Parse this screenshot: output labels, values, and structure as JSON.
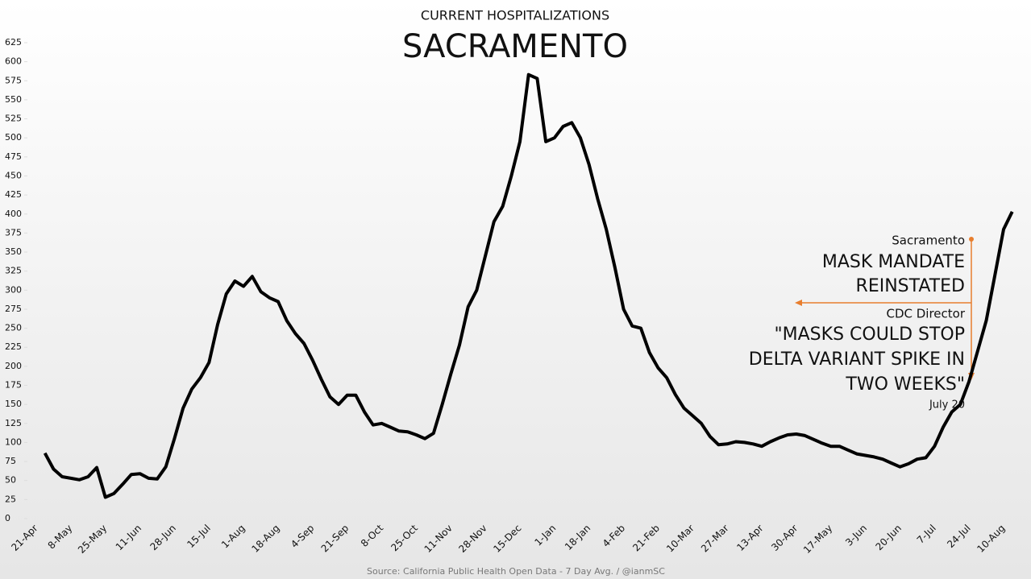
{
  "chart_data": {
    "type": "line",
    "title": "CURRENT HOSPITALIZATIONS",
    "subtitle": "SACRAMENTO",
    "source": "Source: California Public Health Open Data - 7 Day Avg. / @ianmSC",
    "categories": [
      "21-Apr",
      null,
      null,
      null,
      "8-May",
      null,
      null,
      null,
      "25-May",
      null,
      null,
      null,
      "11-Jun",
      null,
      null,
      null,
      "28-Jun",
      null,
      null,
      null,
      "15-Jul",
      null,
      null,
      null,
      "1-Aug",
      null,
      null,
      null,
      "18-Aug",
      null,
      null,
      null,
      "4-Sep",
      null,
      null,
      null,
      "21-Sep",
      null,
      null,
      null,
      "8-Oct",
      null,
      null,
      null,
      "25-Oct",
      null,
      null,
      null,
      "11-Nov",
      null,
      null,
      null,
      "28-Nov",
      null,
      null,
      null,
      "15-Dec",
      null,
      null,
      null,
      "1-Jan",
      null,
      null,
      null,
      "18-Jan",
      null,
      null,
      null,
      "4-Feb",
      null,
      null,
      null,
      "21-Feb",
      null,
      null,
      null,
      "10-Mar",
      null,
      null,
      null,
      "27-Mar",
      null,
      null,
      null,
      "13-Apr",
      null,
      null,
      null,
      "30-Apr",
      null,
      null,
      null,
      "17-May",
      null,
      null,
      null,
      "3-Jun",
      null,
      null,
      null,
      "20-Jun",
      null,
      null,
      null,
      "7-Jul",
      null,
      null,
      null,
      "24-Jul",
      null,
      null,
      null,
      "10-Aug",
      null
    ],
    "series": [
      {
        "name": "Sacramento",
        "color": "#000000",
        "values": [
          null,
          86,
          65,
          55,
          53,
          51,
          55,
          67,
          28,
          33,
          45,
          58,
          59,
          53,
          52,
          68,
          105,
          145,
          170,
          185,
          205,
          255,
          295,
          312,
          305,
          318,
          298,
          290,
          285,
          260,
          243,
          230,
          208,
          183,
          160,
          150,
          162,
          162,
          140,
          123,
          125,
          120,
          115,
          114,
          110,
          105,
          112,
          150,
          190,
          228,
          278,
          300,
          345,
          390,
          410,
          450,
          495,
          583,
          578,
          495,
          500,
          515,
          520,
          500,
          465,
          420,
          380,
          330,
          275,
          253,
          250,
          218,
          198,
          185,
          163,
          145,
          135,
          125,
          108,
          97,
          98,
          101,
          100,
          98,
          95,
          101,
          106,
          110,
          111,
          109,
          104,
          99,
          95,
          95,
          90,
          85,
          83,
          81,
          78,
          73,
          68,
          72,
          78,
          80,
          95,
          120,
          140,
          150,
          180,
          220,
          260,
          320,
          380,
          403
        ]
      }
    ],
    "ylim": [
      0,
      625
    ],
    "yticks": [
      0,
      25,
      50,
      75,
      100,
      125,
      150,
      175,
      200,
      225,
      250,
      275,
      300,
      325,
      350,
      375,
      400,
      425,
      450,
      475,
      500,
      525,
      550,
      575,
      600,
      625
    ],
    "annotations": [
      "Sacramento",
      "MASK MANDATE",
      "REINSTATED",
      "CDC Director",
      "\"MASKS COULD STOP",
      "DELTA VARIANT SPIKE IN",
      "TWO WEEKS\"",
      "July 20"
    ],
    "annotation_color": "#e87e2e"
  }
}
